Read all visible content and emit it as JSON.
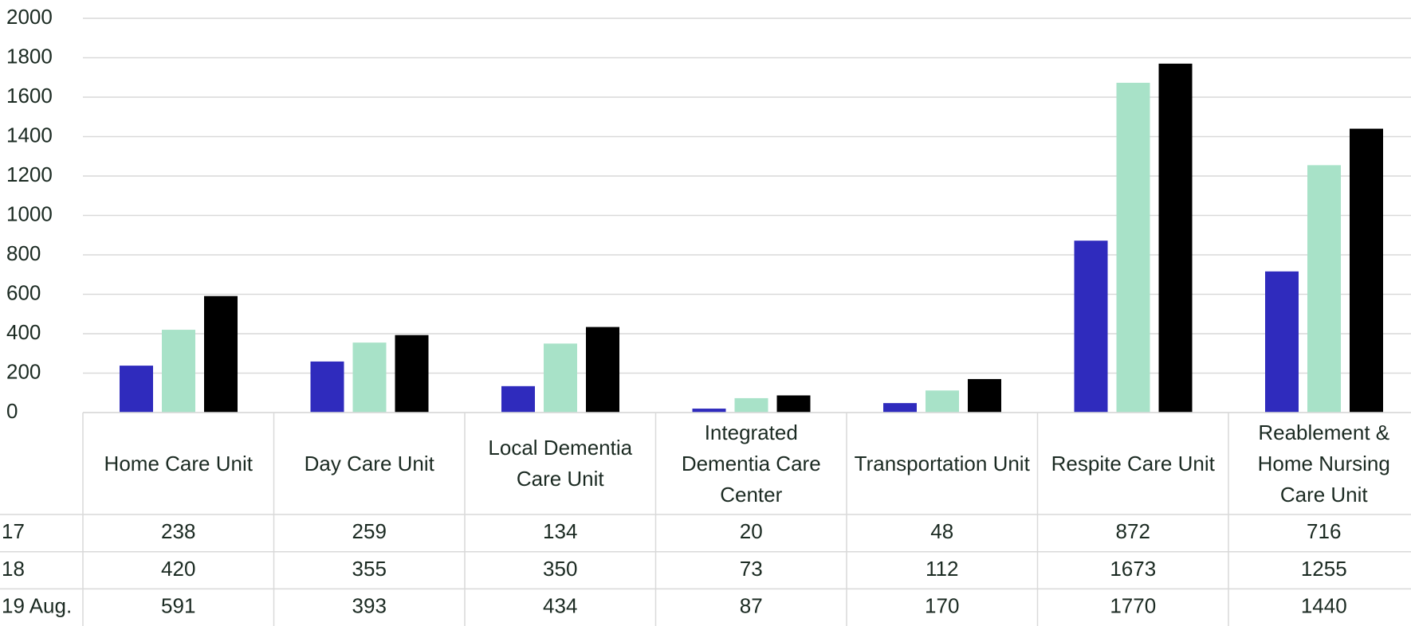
{
  "chart_data": {
    "type": "bar",
    "categories": [
      "Home Care Unit",
      "Day Care Unit",
      "Local Dementia Care Unit",
      "Integrated Dementia Care Center",
      "Transportation Unit",
      "Respite Care Unit",
      "Reablement & Home Nursing Care Unit"
    ],
    "series": [
      {
        "name": "17",
        "color": "#2f2bbd",
        "values": [
          238,
          259,
          134,
          20,
          48,
          872,
          716
        ]
      },
      {
        "name": "18",
        "color": "#a8e2c8",
        "values": [
          420,
          355,
          350,
          73,
          112,
          1673,
          1255
        ]
      },
      {
        "name": "19 Aug.",
        "color": "#000000",
        "values": [
          591,
          393,
          434,
          87,
          170,
          1770,
          1440
        ]
      }
    ],
    "ylim": [
      0,
      2000
    ],
    "yticks": [
      0,
      200,
      400,
      600,
      800,
      1000,
      1200,
      1400,
      1600,
      1800,
      2000
    ],
    "grid": true,
    "data_table": true
  }
}
